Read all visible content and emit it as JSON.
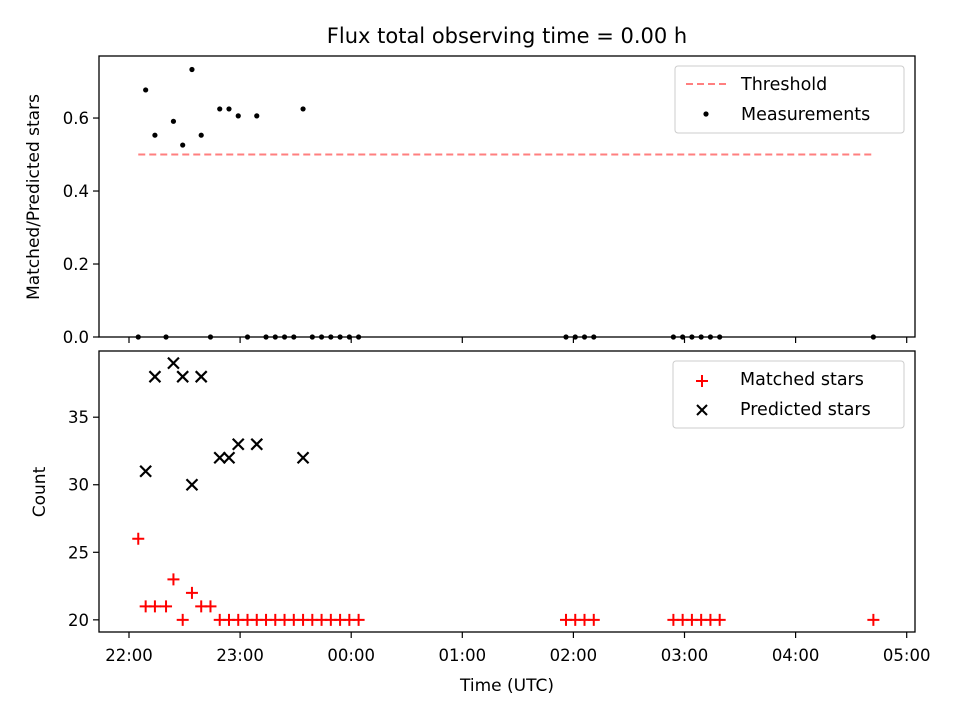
{
  "chart_data": {
    "type": "scatter",
    "title": "Flux total observing time = 0.00 h",
    "xlabel": "Time (UTC)",
    "x_unit": "hours after 22:00 UTC",
    "x_ticks": [
      "22:00",
      "23:00",
      "00:00",
      "01:00",
      "02:00",
      "03:00",
      "04:00",
      "05:00"
    ],
    "panels": [
      {
        "id": "ratio",
        "ylabel": "Matched/Predicted stars",
        "ylim": [
          0,
          0.77
        ],
        "y_ticks": [
          "0.0",
          "0.2",
          "0.4",
          "0.6"
        ],
        "legend_position": "upper right",
        "series": [
          {
            "name": "Threshold",
            "kind": "dashed-line",
            "color": "#ff7f7f",
            "points": [
              [
                "22:05",
                0.5
              ],
              [
                "04:42",
                0.5
              ]
            ]
          },
          {
            "name": "Measurements",
            "kind": "dot",
            "color": "#000000",
            "points": [
              [
                "22:05",
                0.0
              ],
              [
                "22:09",
                0.677
              ],
              [
                "22:14",
                0.553
              ],
              [
                "22:20",
                0.0
              ],
              [
                "22:24",
                0.591
              ],
              [
                "22:29",
                0.526
              ],
              [
                "22:34",
                0.733
              ],
              [
                "22:39",
                0.553
              ],
              [
                "22:44",
                0.0
              ],
              [
                "22:49",
                0.625
              ],
              [
                "22:54",
                0.625
              ],
              [
                "22:59",
                0.606
              ],
              [
                "23:04",
                0.0
              ],
              [
                "23:09",
                0.606
              ],
              [
                "23:14",
                0.0
              ],
              [
                "23:19",
                0.0
              ],
              [
                "23:24",
                0.0
              ],
              [
                "23:29",
                0.0
              ],
              [
                "23:34",
                0.625
              ],
              [
                "23:39",
                0.0
              ],
              [
                "23:44",
                0.0
              ],
              [
                "23:49",
                0.0
              ],
              [
                "23:54",
                0.0
              ],
              [
                "23:59",
                0.0
              ],
              [
                "00:04",
                0.0
              ],
              [
                "01:56",
                0.0
              ],
              [
                "02:01",
                0.0
              ],
              [
                "02:06",
                0.0
              ],
              [
                "02:11",
                0.0
              ],
              [
                "02:54",
                0.0
              ],
              [
                "02:59",
                0.0
              ],
              [
                "03:04",
                0.0
              ],
              [
                "03:09",
                0.0
              ],
              [
                "03:14",
                0.0
              ],
              [
                "03:19",
                0.0
              ],
              [
                "04:42",
                0.0
              ]
            ]
          }
        ]
      },
      {
        "id": "counts",
        "ylabel": "Count",
        "ylim": [
          19.1,
          39.9
        ],
        "y_ticks": [
          "20",
          "25",
          "30",
          "35"
        ],
        "legend_position": "upper right",
        "series": [
          {
            "name": "Matched stars",
            "kind": "plus",
            "color": "#ff0000",
            "points": [
              [
                "22:05",
                26
              ],
              [
                "22:09",
                21
              ],
              [
                "22:14",
                21
              ],
              [
                "22:20",
                21
              ],
              [
                "22:24",
                23
              ],
              [
                "22:29",
                20
              ],
              [
                "22:34",
                22
              ],
              [
                "22:39",
                21
              ],
              [
                "22:44",
                21
              ],
              [
                "22:49",
                20
              ],
              [
                "22:54",
                20
              ],
              [
                "22:59",
                20
              ],
              [
                "23:04",
                20
              ],
              [
                "23:09",
                20
              ],
              [
                "23:14",
                20
              ],
              [
                "23:19",
                20
              ],
              [
                "23:24",
                20
              ],
              [
                "23:29",
                20
              ],
              [
                "23:34",
                20
              ],
              [
                "23:39",
                20
              ],
              [
                "23:44",
                20
              ],
              [
                "23:49",
                20
              ],
              [
                "23:54",
                20
              ],
              [
                "23:59",
                20
              ],
              [
                "00:04",
                20
              ],
              [
                "01:56",
                20
              ],
              [
                "02:01",
                20
              ],
              [
                "02:06",
                20
              ],
              [
                "02:11",
                20
              ],
              [
                "02:54",
                20
              ],
              [
                "02:59",
                20
              ],
              [
                "03:04",
                20
              ],
              [
                "03:09",
                20
              ],
              [
                "03:14",
                20
              ],
              [
                "03:19",
                20
              ],
              [
                "04:42",
                20
              ]
            ]
          },
          {
            "name": "Predicted stars",
            "kind": "cross",
            "color": "#000000",
            "points": [
              [
                "22:09",
                31
              ],
              [
                "22:14",
                38
              ],
              [
                "22:24",
                39
              ],
              [
                "22:29",
                38
              ],
              [
                "22:34",
                30
              ],
              [
                "22:39",
                38
              ],
              [
                "22:49",
                32
              ],
              [
                "22:54",
                32
              ],
              [
                "22:59",
                33
              ],
              [
                "23:09",
                33
              ],
              [
                "23:34",
                32
              ]
            ]
          }
        ]
      }
    ]
  }
}
